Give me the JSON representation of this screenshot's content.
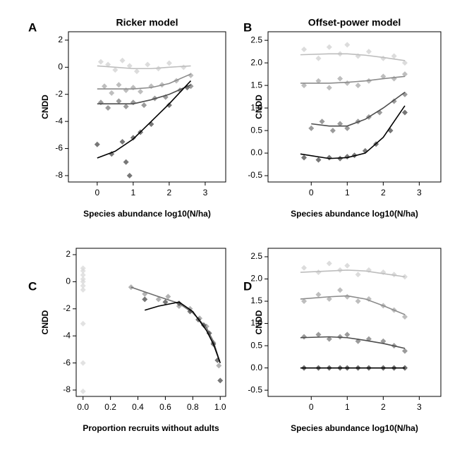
{
  "chart_data": [
    {
      "type": "scatter",
      "panel": "A",
      "title": "Ricker model",
      "xlabel": "Species abundance log10(N/ha)",
      "ylabel": "CNDD",
      "xlim": [
        -0.8,
        3.57
      ],
      "ylim": [
        -8.47,
        2.62
      ],
      "xticks": [
        0,
        1,
        2,
        3
      ],
      "yticks": [
        -8,
        -6,
        -4,
        -2,
        0,
        2
      ],
      "series": [
        {
          "color": "#d0d0d0",
          "x": [
            0.1,
            0.3,
            0.5,
            0.7,
            0.9,
            1.1,
            1.4,
            1.7,
            2.0,
            2.4
          ],
          "values": [
            0.4,
            0.2,
            -0.2,
            0.5,
            0.1,
            -0.3,
            0.2,
            -0.1,
            0.3,
            0.0
          ],
          "fit_color": "#bdbdbd",
          "fit_x": [
            0,
            0.5,
            1,
            1.5,
            2,
            2.6
          ],
          "fit_values": [
            0.1,
            0,
            -0.1,
            -0.1,
            0,
            0.1
          ]
        },
        {
          "color": "#a8a8a8",
          "x": [
            0.2,
            0.4,
            0.6,
            0.8,
            1.0,
            1.2,
            1.5,
            1.8,
            2.2,
            2.6
          ],
          "values": [
            -1.4,
            -1.9,
            -1.3,
            -1.7,
            -1.5,
            -1.8,
            -1.4,
            -1.3,
            -1.0,
            -0.6
          ],
          "fit_color": "#8c8c8c",
          "fit_x": [
            0,
            0.5,
            1,
            1.5,
            2,
            2.6
          ],
          "fit_values": [
            -1.6,
            -1.6,
            -1.6,
            -1.5,
            -1.2,
            -0.5
          ]
        },
        {
          "color": "#7a7a7a",
          "x": [
            0.1,
            0.3,
            0.6,
            0.8,
            1.0,
            1.3,
            1.6,
            1.9,
            2.3,
            2.6
          ],
          "values": [
            -2.6,
            -3.0,
            -2.5,
            -2.9,
            -2.6,
            -2.8,
            -2.3,
            -2.2,
            -1.7,
            -1.4
          ],
          "fit_color": "#4d4d4d",
          "fit_x": [
            0,
            0.5,
            1,
            1.5,
            2,
            2.6
          ],
          "fit_values": [
            -2.7,
            -2.7,
            -2.7,
            -2.4,
            -2.0,
            -1.3
          ]
        },
        {
          "color": "#4a4a4a",
          "x": [
            0.0,
            0.4,
            0.7,
            0.8,
            0.9,
            1.0,
            1.2,
            1.5,
            2.0,
            2.5
          ],
          "values": [
            -5.7,
            -6.4,
            -5.5,
            -7.0,
            -8.0,
            -5.2,
            -4.8,
            -4.2,
            -2.8,
            -1.5
          ],
          "fit_color": "#000000",
          "fit_x": [
            0,
            0.5,
            1,
            1.5,
            2,
            2.6
          ],
          "fit_values": [
            -6.7,
            -6.2,
            -5.3,
            -4.0,
            -2.7,
            -1.0
          ]
        }
      ]
    },
    {
      "type": "scatter",
      "panel": "B",
      "title": "Offset-power model",
      "xlabel": "Species abundance log10(N/ha)",
      "ylabel": "CNDD",
      "xlim": [
        -1.2,
        3.6
      ],
      "ylim": [
        -0.64,
        2.69
      ],
      "xticks": [
        0,
        1,
        2,
        3
      ],
      "yticks": [
        -0.5,
        {
          "value": 0,
          "label": "0.0"
        },
        0.5,
        {
          "value": 1,
          "label": "1.0"
        },
        1.5,
        {
          "value": 2,
          "label": "2.0"
        },
        2.5
      ],
      "series": [
        {
          "color": "#d0d0d0",
          "x": [
            -0.2,
            0.2,
            0.5,
            0.8,
            1.0,
            1.3,
            1.6,
            2.0,
            2.3,
            2.6
          ],
          "values": [
            2.3,
            2.1,
            2.35,
            2.2,
            2.4,
            2.15,
            2.25,
            2.1,
            2.15,
            2.0
          ],
          "fit_color": "#bdbdbd",
          "fit_x": [
            -0.3,
            0.5,
            1,
            1.5,
            2,
            2.6
          ],
          "fit_values": [
            2.18,
            2.2,
            2.2,
            2.17,
            2.12,
            2.05
          ]
        },
        {
          "color": "#a8a8a8",
          "x": [
            -0.2,
            0.2,
            0.5,
            0.8,
            1.0,
            1.3,
            1.6,
            2.0,
            2.3,
            2.6
          ],
          "values": [
            1.5,
            1.6,
            1.45,
            1.65,
            1.55,
            1.5,
            1.6,
            1.7,
            1.65,
            1.75
          ],
          "fit_color": "#8c8c8c",
          "fit_x": [
            -0.3,
            0.5,
            1,
            1.5,
            2,
            2.6
          ],
          "fit_values": [
            1.55,
            1.55,
            1.57,
            1.6,
            1.65,
            1.7
          ]
        },
        {
          "color": "#7a7a7a",
          "x": [
            0,
            0.3,
            0.6,
            0.8,
            1.0,
            1.3,
            1.6,
            1.9,
            2.3,
            2.6
          ],
          "values": [
            0.55,
            0.7,
            0.5,
            0.65,
            0.55,
            0.7,
            0.8,
            0.9,
            1.15,
            1.3
          ],
          "fit_color": "#4d4d4d",
          "fit_x": [
            0,
            0.5,
            1,
            1.5,
            2,
            2.6
          ],
          "fit_values": [
            0.65,
            0.6,
            0.6,
            0.75,
            1.0,
            1.35
          ]
        },
        {
          "color": "#4a4a4a",
          "x": [
            -0.2,
            0.2,
            0.5,
            0.8,
            1.0,
            1.2,
            1.5,
            1.8,
            2.2,
            2.6
          ],
          "values": [
            -0.1,
            -0.15,
            -0.1,
            -0.12,
            -0.08,
            -0.05,
            0.05,
            0.2,
            0.5,
            0.9
          ],
          "fit_color": "#000000",
          "fit_x": [
            -0.3,
            0.5,
            1,
            1.5,
            2,
            2.6
          ],
          "fit_values": [
            -0.02,
            -0.12,
            -0.1,
            0.0,
            0.35,
            1.05
          ]
        }
      ]
    },
    {
      "type": "scatter",
      "panel": "C",
      "xlabel": "Proportion recruits without adults",
      "ylabel": "CNDD",
      "xlim": [
        -0.05,
        1.04
      ],
      "ylim": [
        -8.47,
        2.47
      ],
      "xticks": [
        {
          "value": 0,
          "label": "0.0"
        },
        0.2,
        0.4,
        0.6,
        0.8,
        {
          "value": 1,
          "label": "1.0"
        }
      ],
      "yticks": [
        -8,
        -6,
        -4,
        -2,
        0,
        2
      ],
      "series": [
        {
          "color": "#d8d8d8",
          "x": [
            0,
            0,
            0,
            0,
            0,
            0,
            0,
            0,
            0,
            0
          ],
          "values": [
            1.0,
            0.8,
            0.5,
            0.2,
            0,
            -0.3,
            -0.6,
            -3.1,
            -6.0,
            -8.1
          ]
        },
        {
          "color": "#9a9a9a",
          "x": [
            0.35,
            0.45,
            0.55,
            0.62,
            0.7,
            0.78,
            0.85,
            0.9,
            0.95,
            0.99
          ],
          "values": [
            -0.4,
            -0.9,
            -1.3,
            -1.1,
            -1.8,
            -2.0,
            -2.7,
            -3.3,
            -4.5,
            -6.2
          ],
          "fit_color": "#6e6e6e",
          "fit_x": [
            0.35,
            0.55,
            0.7,
            0.8,
            0.9,
            0.95,
            1.0
          ],
          "fit_values": [
            -0.4,
            -1.1,
            -1.6,
            -2.3,
            -3.4,
            -4.4,
            -6.0
          ]
        },
        {
          "color": "#4a4a4a",
          "x": [
            0.45,
            0.6,
            0.7,
            0.78,
            0.84,
            0.88,
            0.92,
            0.95,
            0.98,
            1.0
          ],
          "values": [
            -1.3,
            -1.5,
            -1.6,
            -2.2,
            -2.8,
            -3.2,
            -3.8,
            -4.6,
            -5.8,
            -7.3
          ],
          "fit_color": "#000000",
          "fit_x": [
            0.45,
            0.55,
            0.7,
            0.8,
            0.9,
            0.95,
            1.0
          ],
          "fit_values": [
            -2.1,
            -1.8,
            -1.5,
            -2.2,
            -3.6,
            -4.6,
            -6.0
          ]
        }
      ]
    },
    {
      "type": "scatter",
      "panel": "D",
      "xlabel": "Species abundance log10(N/ha)",
      "ylabel": "CNDD",
      "xlim": [
        -1.2,
        3.6
      ],
      "ylim": [
        -0.64,
        2.69
      ],
      "xticks": [
        0,
        1,
        2,
        3
      ],
      "yticks": [
        -0.5,
        {
          "value": 0,
          "label": "0.0"
        },
        0.5,
        {
          "value": 1,
          "label": "1.0"
        },
        1.5,
        {
          "value": 2,
          "label": "2.0"
        },
        2.5
      ],
      "series": [
        {
          "color": "#d0d0d0",
          "x": [
            -0.2,
            0.2,
            0.5,
            0.8,
            1.0,
            1.3,
            1.6,
            2.0,
            2.3,
            2.6
          ],
          "values": [
            2.25,
            2.15,
            2.35,
            2.2,
            2.3,
            2.1,
            2.2,
            2.15,
            2.1,
            2.05
          ],
          "fit_color": "#bdbdbd",
          "fit_x": [
            -0.3,
            0.5,
            1,
            1.5,
            2,
            2.6
          ],
          "fit_values": [
            2.15,
            2.18,
            2.2,
            2.18,
            2.12,
            2.05
          ]
        },
        {
          "color": "#a8a8a8",
          "x": [
            -0.2,
            0.2,
            0.5,
            0.8,
            1.0,
            1.3,
            1.6,
            2.0,
            2.3,
            2.6
          ],
          "values": [
            1.5,
            1.65,
            1.55,
            1.75,
            1.6,
            1.5,
            1.55,
            1.4,
            1.3,
            1.15
          ],
          "fit_color": "#8c8c8c",
          "fit_x": [
            -0.3,
            0.5,
            1,
            1.5,
            2,
            2.6
          ],
          "fit_values": [
            1.55,
            1.6,
            1.62,
            1.55,
            1.4,
            1.2
          ]
        },
        {
          "color": "#7a7a7a",
          "x": [
            -0.2,
            0.2,
            0.5,
            0.8,
            1.0,
            1.3,
            1.6,
            2.0,
            2.3,
            2.6
          ],
          "values": [
            0.7,
            0.75,
            0.65,
            0.7,
            0.75,
            0.6,
            0.65,
            0.6,
            0.5,
            0.38
          ],
          "fit_color": "#4d4d4d",
          "fit_x": [
            -0.3,
            0.5,
            1,
            1.5,
            2,
            2.6
          ],
          "fit_values": [
            0.68,
            0.7,
            0.68,
            0.62,
            0.55,
            0.44
          ]
        },
        {
          "color": "#3a3a3a",
          "x": [
            -0.2,
            0.2,
            0.5,
            0.8,
            1.0,
            1.3,
            1.6,
            2.0,
            2.3,
            2.6
          ],
          "values": [
            0,
            0,
            0,
            0,
            0,
            0,
            0,
            0,
            0,
            0
          ],
          "fit_color": "#000000",
          "fit_x": [
            -0.3,
            0.5,
            1,
            1.5,
            2,
            2.6
          ],
          "fit_values": [
            0,
            0,
            0,
            0,
            0,
            0
          ]
        }
      ]
    }
  ]
}
